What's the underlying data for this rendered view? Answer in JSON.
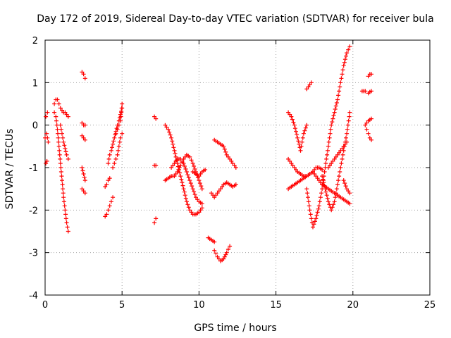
{
  "chart_data": {
    "type": "scatter",
    "title": "Day 172 of 2019, Sidereal Day-to-day VTEC variation (SDTVAR) for receiver bula",
    "xlabel": "GPS time / hours",
    "ylabel": "SDTVAR / TECUs",
    "xlim": [
      0,
      25
    ],
    "ylim": [
      -4,
      2
    ],
    "xticks": [
      0,
      5,
      10,
      15,
      20,
      25
    ],
    "yticks": [
      -4,
      -3,
      -2,
      -1,
      0,
      1,
      2
    ],
    "grid": true,
    "marker": "+",
    "color": "#ff0000",
    "segments": [
      {
        "x": [
          0.0,
          0.1,
          0.2
        ],
        "y": [
          -0.3,
          -0.2,
          -0.4
        ]
      },
      {
        "x": [
          0.05,
          0.15
        ],
        "y": [
          0.2,
          0.3
        ]
      },
      {
        "x": [
          0.05,
          0.12
        ],
        "y": [
          -0.9,
          -0.85
        ]
      },
      {
        "x": [
          0.6,
          0.7,
          0.8,
          0.9,
          1.0,
          1.1,
          1.2,
          1.3,
          1.4,
          1.5
        ],
        "y": [
          0.5,
          0.6,
          0.6,
          0.5,
          0.4,
          0.35,
          0.3,
          0.3,
          0.25,
          0.2
        ]
      },
      {
        "x": [
          0.6,
          0.7,
          0.8,
          0.9,
          1.0,
          1.1,
          1.2,
          1.3,
          1.4,
          1.5
        ],
        "y": [
          0.3,
          0.2,
          -0.1,
          -0.5,
          -0.9,
          -1.3,
          -1.7,
          -2.0,
          -2.3,
          -2.5
        ]
      },
      {
        "x": [
          1.0,
          1.1,
          1.2,
          1.3,
          1.4,
          1.5
        ],
        "y": [
          0.0,
          -0.2,
          -0.4,
          -0.55,
          -0.7,
          -0.8
        ]
      },
      {
        "x": [
          2.4,
          2.5,
          2.6
        ],
        "y": [
          1.25,
          1.2,
          1.1
        ]
      },
      {
        "x": [
          2.4,
          2.5,
          2.6
        ],
        "y": [
          0.05,
          0.0,
          0.0
        ]
      },
      {
        "x": [
          2.4,
          2.5,
          2.6
        ],
        "y": [
          -0.25,
          -0.3,
          -0.35
        ]
      },
      {
        "x": [
          2.4,
          2.5,
          2.6
        ],
        "y": [
          -1.0,
          -1.15,
          -1.3
        ]
      },
      {
        "x": [
          2.4,
          2.5,
          2.6
        ],
        "y": [
          -1.5,
          -1.55,
          -1.6
        ]
      },
      {
        "x": [
          3.9,
          4.0,
          4.1,
          4.2,
          4.3,
          4.4
        ],
        "y": [
          -2.15,
          -2.1,
          -2.0,
          -1.9,
          -1.8,
          -1.7
        ]
      },
      {
        "x": [
          3.9,
          4.0,
          4.1,
          4.2
        ],
        "y": [
          -1.45,
          -1.4,
          -1.3,
          -1.25
        ]
      },
      {
        "x": [
          4.1,
          4.2,
          4.3,
          4.4,
          4.5,
          4.6,
          4.7,
          4.8,
          4.9,
          5.0
        ],
        "y": [
          -0.9,
          -0.7,
          -0.6,
          -0.45,
          -0.3,
          -0.15,
          0.0,
          0.1,
          0.25,
          0.4
        ]
      },
      {
        "x": [
          4.4,
          4.5,
          4.6,
          4.7,
          4.8,
          4.9,
          5.0
        ],
        "y": [
          -1.0,
          -0.9,
          -0.8,
          -0.7,
          -0.5,
          -0.3,
          -0.2
        ]
      },
      {
        "x": [
          4.6,
          4.7,
          4.8,
          4.9,
          5.0
        ],
        "y": [
          -0.2,
          -0.1,
          0.0,
          0.1,
          0.5
        ]
      },
      {
        "x": [
          7.1,
          7.2
        ],
        "y": [
          0.2,
          0.15
        ]
      },
      {
        "x": [
          7.1,
          7.2
        ],
        "y": [
          -0.95,
          -0.95
        ]
      },
      {
        "x": [
          7.1,
          7.2
        ],
        "y": [
          -2.3,
          -2.2
        ]
      },
      {
        "x": [
          7.8,
          8.0,
          8.2,
          8.4,
          8.6,
          8.8,
          9.0,
          9.2,
          9.4,
          9.6,
          9.8,
          10.0,
          10.2
        ],
        "y": [
          0.0,
          -0.1,
          -0.3,
          -0.6,
          -0.9,
          -1.2,
          -1.5,
          -1.8,
          -2.0,
          -2.1,
          -2.1,
          -2.05,
          -1.95
        ]
      },
      {
        "x": [
          7.8,
          8.0,
          8.2,
          8.4,
          8.6,
          8.8,
          9.0,
          9.2,
          9.4,
          9.6,
          9.8,
          10.0,
          10.2
        ],
        "y": [
          -1.3,
          -1.25,
          -1.2,
          -1.2,
          -1.1,
          -0.95,
          -0.8,
          -0.7,
          -0.75,
          -0.9,
          -1.1,
          -1.3,
          -1.5
        ]
      },
      {
        "x": [
          8.2,
          8.4,
          8.6,
          8.8,
          9.0,
          9.2,
          9.4,
          9.6,
          9.8,
          10.0,
          10.2
        ],
        "y": [
          -1.0,
          -0.9,
          -0.8,
          -0.8,
          -0.9,
          -1.1,
          -1.3,
          -1.5,
          -1.7,
          -1.8,
          -1.85
        ]
      },
      {
        "x": [
          9.6,
          9.8,
          10.0,
          10.2,
          10.4
        ],
        "y": [
          -1.1,
          -1.15,
          -1.2,
          -1.1,
          -1.05
        ]
      },
      {
        "x": [
          10.6,
          10.8,
          11.0
        ],
        "y": [
          -2.65,
          -2.7,
          -2.75
        ]
      },
      {
        "x": [
          11.0,
          11.2,
          11.4,
          11.6,
          11.8,
          12.0
        ],
        "y": [
          -2.95,
          -3.1,
          -3.2,
          -3.15,
          -3.0,
          -2.85
        ]
      },
      {
        "x": [
          10.8,
          11.0,
          11.2,
          11.4,
          11.6,
          11.8,
          12.0,
          12.2,
          12.4
        ],
        "y": [
          -1.6,
          -1.7,
          -1.6,
          -1.5,
          -1.4,
          -1.35,
          -1.4,
          -1.45,
          -1.4
        ]
      },
      {
        "x": [
          11.0,
          11.2,
          11.4,
          11.6,
          11.8,
          12.0,
          12.2,
          12.4
        ],
        "y": [
          -0.35,
          -0.4,
          -0.45,
          -0.5,
          -0.7,
          -0.8,
          -0.9,
          -1.0
        ]
      },
      {
        "x": [
          15.8,
          16.0,
          16.2,
          16.4,
          16.6,
          16.8,
          17.0
        ],
        "y": [
          0.3,
          0.2,
          0.0,
          -0.3,
          -0.6,
          -0.2,
          0.0
        ]
      },
      {
        "x": [
          15.8,
          16.0,
          16.2,
          16.4,
          16.6,
          16.8,
          17.0,
          17.2,
          17.4,
          17.6,
          17.8,
          18.0
        ],
        "y": [
          -0.8,
          -0.9,
          -1.0,
          -1.1,
          -1.15,
          -1.2,
          -1.2,
          -1.15,
          -1.1,
          -1.0,
          -1.0,
          -1.05
        ]
      },
      {
        "x": [
          15.8,
          16.0,
          16.2,
          16.4,
          16.6,
          16.8,
          17.0
        ],
        "y": [
          -1.5,
          -1.45,
          -1.4,
          -1.35,
          -1.3,
          -1.25,
          -1.2
        ]
      },
      {
        "x": [
          17.0,
          17.1,
          17.2,
          17.3
        ],
        "y": [
          0.85,
          0.9,
          0.95,
          1.0
        ]
      },
      {
        "x": [
          17.0,
          17.2,
          17.4,
          17.6,
          17.8,
          18.0,
          18.2,
          18.4,
          18.6,
          18.8,
          19.0,
          19.2,
          19.4,
          19.6,
          19.8
        ],
        "y": [
          -1.5,
          -2.0,
          -2.4,
          -2.2,
          -1.9,
          -1.5,
          -1.0,
          -0.5,
          0.0,
          0.3,
          0.6,
          1.0,
          1.4,
          1.7,
          1.85
        ]
      },
      {
        "x": [
          17.4,
          17.6,
          17.8,
          18.0,
          18.2,
          18.4,
          18.6,
          18.8,
          19.0,
          19.2,
          19.4,
          19.6,
          19.8
        ],
        "y": [
          -1.1,
          -1.2,
          -1.3,
          -1.4,
          -1.45,
          -1.5,
          -1.55,
          -1.6,
          -1.65,
          -1.7,
          -1.75,
          -1.8,
          -1.85
        ]
      },
      {
        "x": [
          18.0,
          18.2,
          18.4,
          18.6,
          18.8,
          19.0,
          19.2,
          19.4,
          19.6,
          19.8
        ],
        "y": [
          -1.2,
          -1.5,
          -1.8,
          -2.0,
          -1.8,
          -1.4,
          -1.0,
          -0.6,
          -0.2,
          0.3
        ]
      },
      {
        "x": [
          18.4,
          18.6,
          18.8,
          19.0,
          19.2,
          19.4,
          19.6
        ],
        "y": [
          -1.0,
          -0.9,
          -0.8,
          -0.7,
          -0.6,
          -0.5,
          -0.4
        ]
      },
      {
        "x": [
          19.4,
          19.6,
          19.8
        ],
        "y": [
          -1.3,
          -1.5,
          -1.6
        ]
      },
      {
        "x": [
          20.6,
          20.8
        ],
        "y": [
          0.8,
          0.8
        ]
      },
      {
        "x": [
          21.0,
          21.1,
          21.2
        ],
        "y": [
          1.15,
          1.2,
          1.2
        ]
      },
      {
        "x": [
          21.0,
          21.1,
          21.2
        ],
        "y": [
          0.75,
          0.78,
          0.8
        ]
      },
      {
        "x": [
          20.8,
          21.0,
          21.2
        ],
        "y": [
          0.0,
          0.1,
          0.15
        ]
      },
      {
        "x": [
          20.9,
          21.0,
          21.1,
          21.2
        ],
        "y": [
          -0.1,
          -0.2,
          -0.3,
          -0.35
        ]
      }
    ]
  }
}
